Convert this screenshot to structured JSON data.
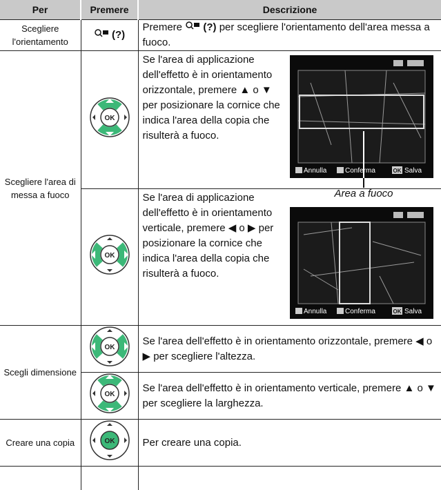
{
  "header": {
    "per": "Per",
    "premere": "Premere",
    "descrizione": "Descrizione"
  },
  "rows": [
    {
      "per": "Scegliere l'orientamento",
      "premere": "(?)",
      "descrizione": {
        "before": "Premere",
        "key": "(?)",
        "after": "per scegliere l'orientamento dell'area messa a fuoco."
      }
    },
    {
      "per": "Scegliere l'area di messa a fuoco",
      "descrizione": [
        "Se l'area di applicazione dell'effetto è in orientamento orizzontale, premere ▲ o ▼  per posizionare la cornice che indica l'area della copia che risulterà a fuoco.",
        "Se l'area di applicazione dell'effetto è in orientamento verticale, premere ◀ o ▶  per posizionare la cornice che indica l'area della copia che risulterà a fuoco."
      ]
    },
    {
      "per": "Scegli dimensione",
      "descrizione": [
        "Se l'area dell'effetto è in orientamento orizzontale, premere ◀ o ▶ per scegliere l'altezza.",
        "Se l'area dell'effetto è in orientamento verticale, premere ▲ o ▼ per scegliere la larghezza."
      ]
    },
    {
      "per": "Creare una copia",
      "descrizione": [
        "Per creare una copia."
      ]
    }
  ],
  "selector_ok": "OK",
  "figure": {
    "caption": "Area a fuoco",
    "annulla": "Annulla",
    "conferma": "Conferma",
    "ok": "OK",
    "salva": "Salva"
  }
}
